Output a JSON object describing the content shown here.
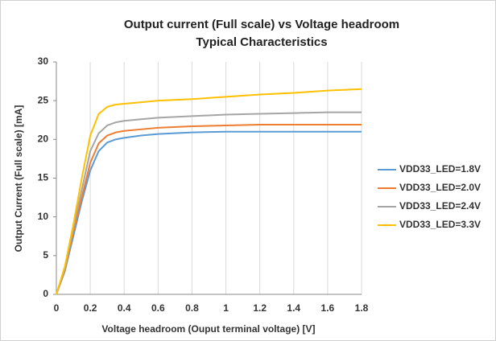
{
  "chart_data": {
    "type": "line",
    "title": "Output current (Full scale)  vs  Voltage headroom",
    "subtitle": "Typical Characteristics",
    "xlabel": "Voltage headroom (Ouput terminal voltage)  [V]",
    "ylabel": "Output Current (Full scale) [mA]",
    "x": [
      0,
      0.05,
      0.1,
      0.15,
      0.2,
      0.25,
      0.3,
      0.35,
      0.4,
      0.5,
      0.6,
      0.8,
      1.0,
      1.2,
      1.4,
      1.6,
      1.8
    ],
    "series": [
      {
        "name": "VDD33_LED=1.8V",
        "color": "#5b9bd5",
        "values": [
          0,
          3,
          7.5,
          12,
          16,
          18.5,
          19.6,
          20,
          20.2,
          20.5,
          20.7,
          20.9,
          21,
          21,
          21,
          21,
          21
        ]
      },
      {
        "name": "VDD33_LED=2.0V",
        "color": "#ed7d31",
        "values": [
          0,
          3.2,
          8,
          12.5,
          17,
          19.5,
          20.5,
          20.9,
          21.1,
          21.3,
          21.5,
          21.7,
          21.8,
          21.9,
          21.9,
          21.9,
          21.9
        ]
      },
      {
        "name": "VDD33_LED=2.4V",
        "color": "#a5a5a5",
        "values": [
          0,
          3.4,
          8.5,
          13.5,
          18.5,
          20.8,
          21.8,
          22.2,
          22.4,
          22.6,
          22.8,
          23,
          23.2,
          23.3,
          23.4,
          23.5,
          23.5
        ]
      },
      {
        "name": "VDD33_LED=3.3V",
        "color": "#ffc000",
        "values": [
          0,
          3.6,
          9,
          15,
          20.5,
          23.3,
          24.2,
          24.5,
          24.6,
          24.8,
          25,
          25.2,
          25.5,
          25.8,
          26,
          26.3,
          26.5
        ]
      }
    ],
    "xlim": [
      0,
      1.8
    ],
    "xticks": [
      0,
      0.2,
      0.4,
      0.6,
      0.8,
      1,
      1.2,
      1.4,
      1.6,
      1.8
    ],
    "ylim": [
      0,
      30
    ],
    "yticks": [
      0,
      5,
      10,
      15,
      20,
      25,
      30
    ],
    "grid": "x",
    "legend": "right"
  }
}
